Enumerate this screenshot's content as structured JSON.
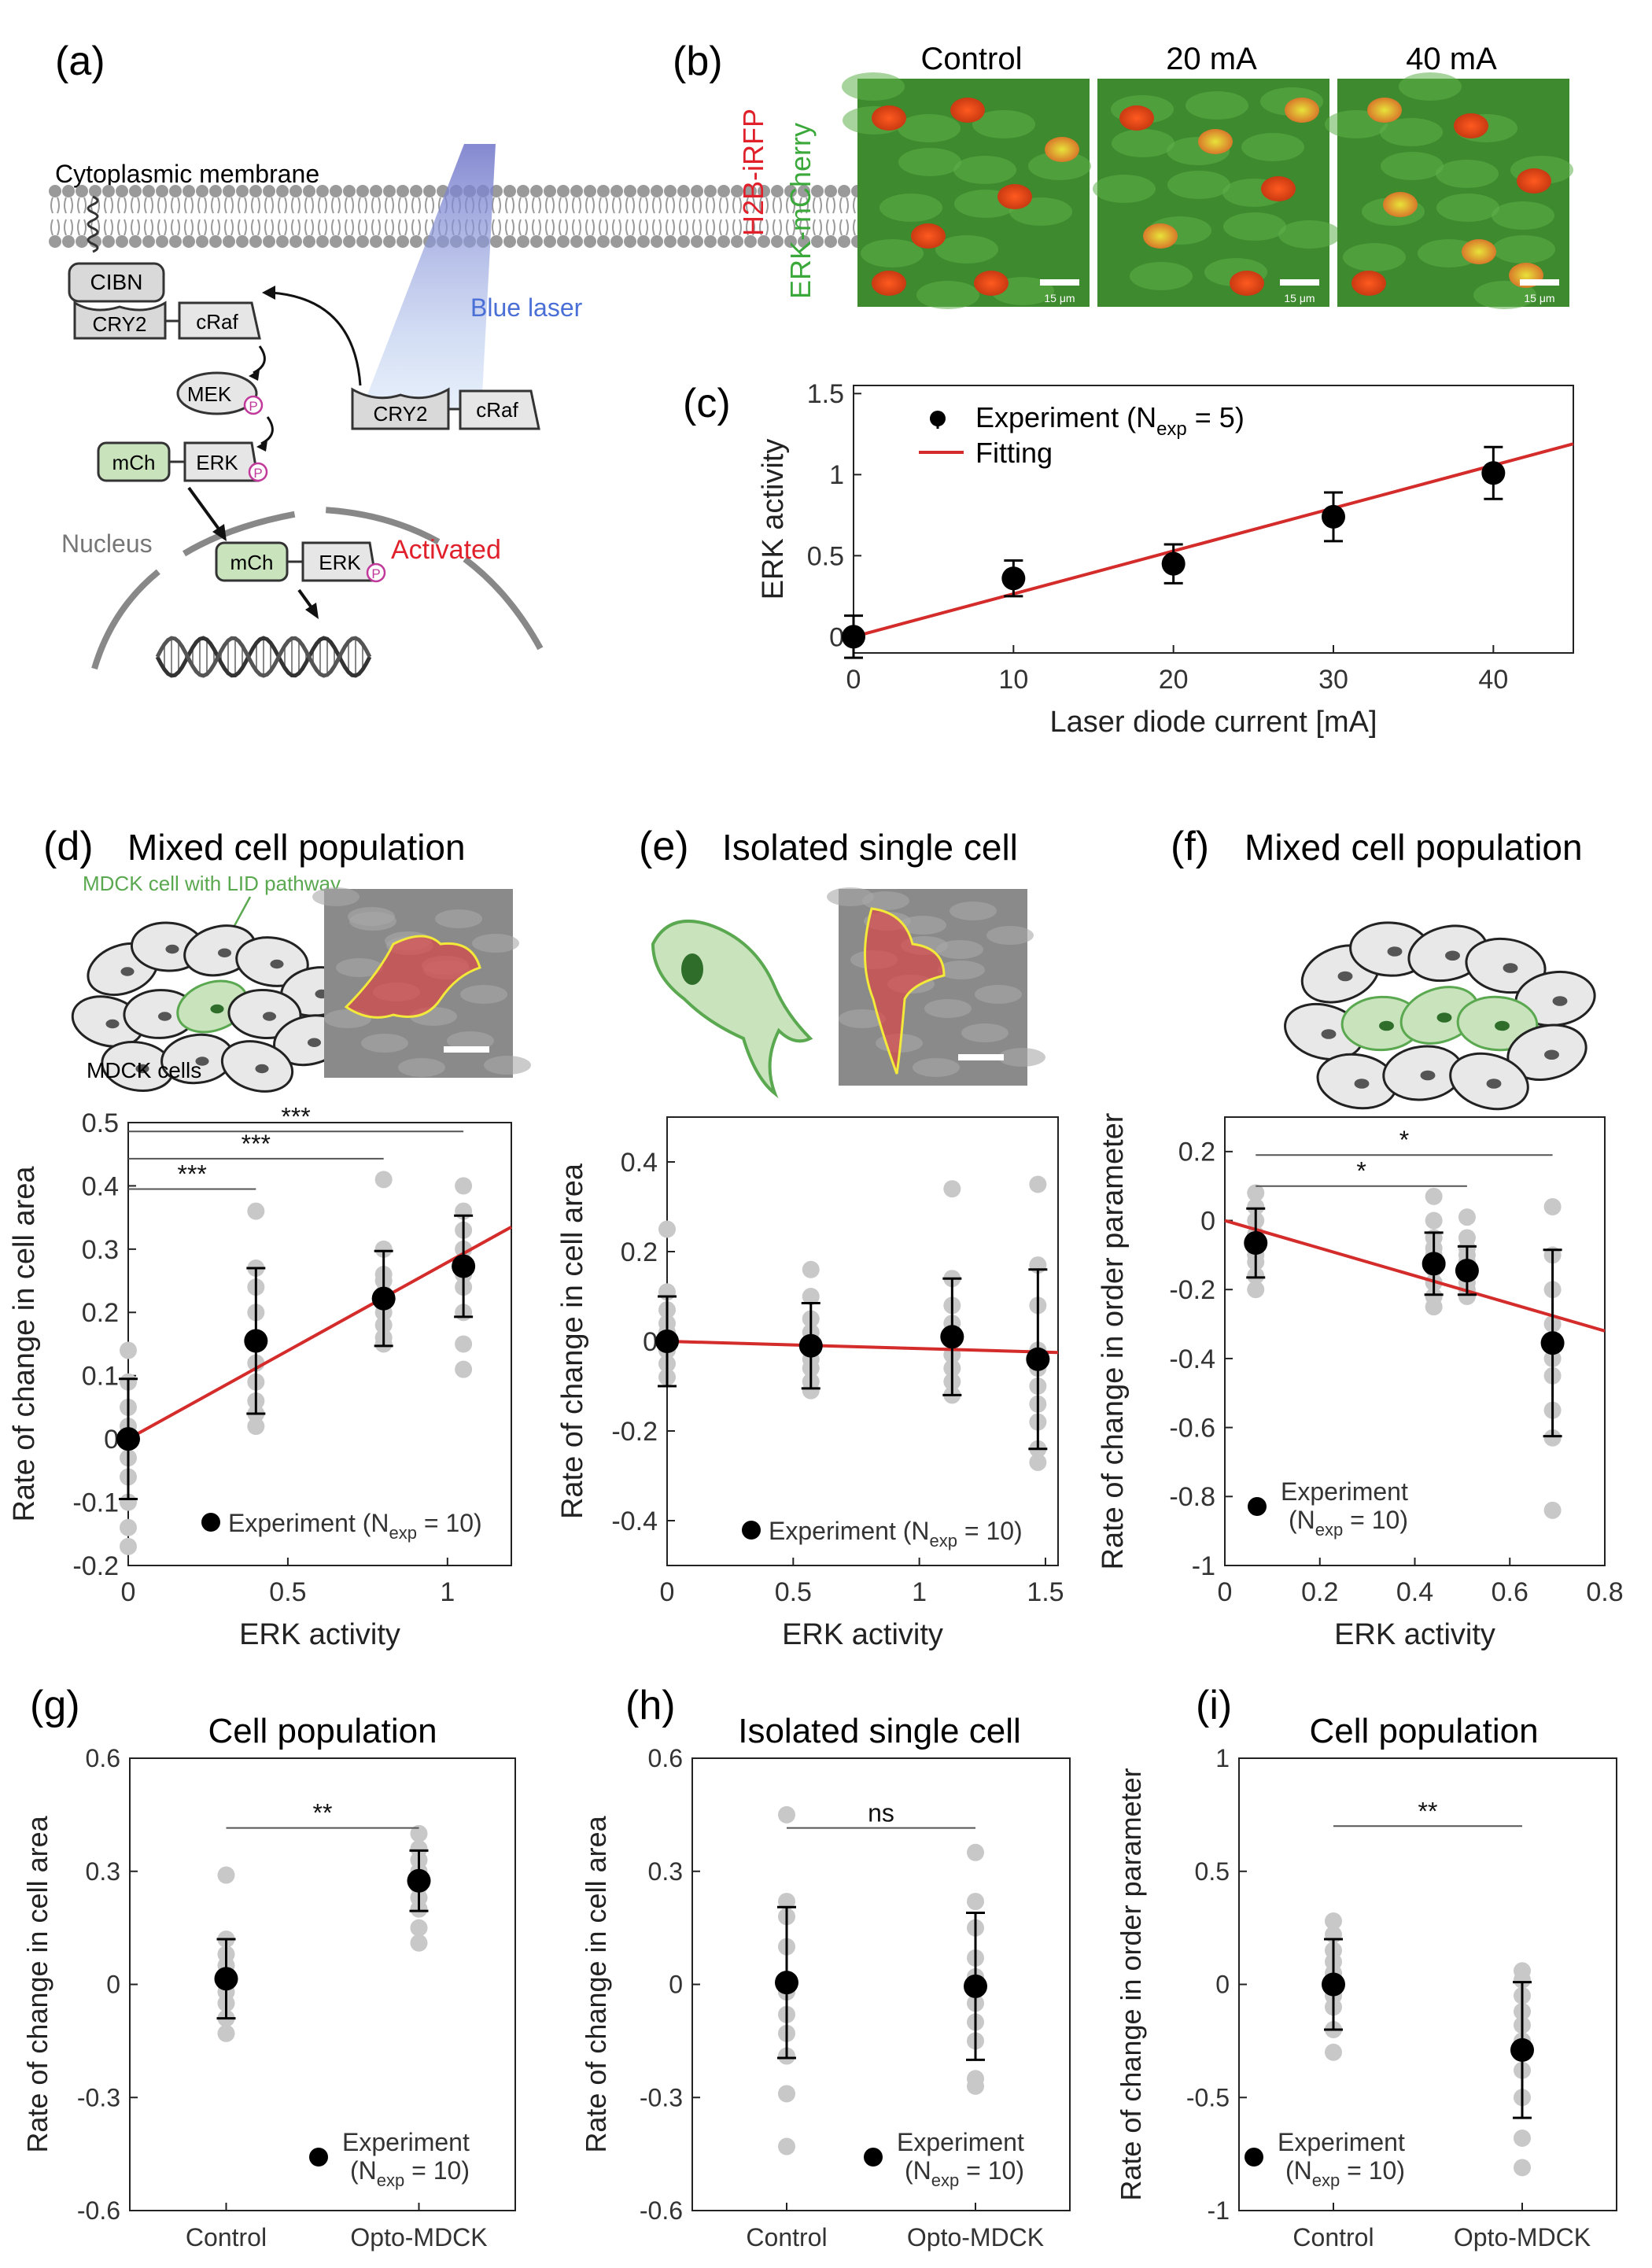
{
  "panels": {
    "a": {
      "label": "(a)",
      "membrane": "Cytoplasmic membrane",
      "laser": "Blue laser",
      "nucleus": "Nucleus",
      "activated": "Activated",
      "boxes": {
        "cibn": "CIBN",
        "cry2": "CRY2",
        "craf": "cRaf",
        "mek": "MEK",
        "mch": "mCh",
        "erk": "ERK",
        "p": "P"
      }
    },
    "b": {
      "label": "(b)",
      "columns": [
        "Control",
        "20 mA",
        "40 mA"
      ],
      "side_red": "H2B-iRFP",
      "side_green": "ERK-mCherry",
      "scalebar": "15 μm"
    },
    "c": {
      "label": "(c)",
      "legend_exp": "Experiment (N",
      "legend_sub": "exp",
      "legend_end": " = 5)",
      "legend_fit": "Fitting"
    },
    "d": {
      "label": "(d)",
      "title": "Mixed cell population",
      "lid_label": "MDCK cell with LID pathway",
      "cells_label": "MDCK cells"
    },
    "e": {
      "label": "(e)",
      "title": "Isolated single cell"
    },
    "f": {
      "label": "(f)",
      "title": "Mixed cell population"
    },
    "g": {
      "label": "(g)",
      "title": "Cell population"
    },
    "h": {
      "label": "(h)",
      "title": "Isolated single cell"
    },
    "i": {
      "label": "(i)",
      "title": "Cell population"
    }
  },
  "colors": {
    "fit": "#d42b2b",
    "point": "#000000",
    "gray_point": "#c8c8c8",
    "green": "#5aa84f",
    "blue": "#4a6fd6",
    "red": "#e0202a"
  },
  "chart_data": [
    {
      "id": "c",
      "type": "scatter",
      "xlabel": "Laser diode current [mA]",
      "ylabel": "ERK activity",
      "xlim": [
        0,
        45
      ],
      "ylim": [
        -0.1,
        1.55
      ],
      "xticks": [
        0,
        10,
        20,
        30,
        40
      ],
      "yticks": [
        0,
        0.5,
        1,
        1.5
      ],
      "yticklabels": [
        "0",
        "0.5",
        "1",
        "1.5"
      ],
      "series": [
        {
          "name": "Experiment",
          "x": [
            0,
            10,
            20,
            30,
            40
          ],
          "y": [
            0.0,
            0.36,
            0.45,
            0.74,
            1.01
          ],
          "err": [
            0.13,
            0.11,
            0.12,
            0.15,
            0.16
          ]
        }
      ],
      "fit": {
        "x": [
          0,
          45
        ],
        "y": [
          0.0,
          1.19
        ]
      }
    },
    {
      "id": "d",
      "type": "scatter",
      "xlabel": "ERK activity",
      "ylabel": "Rate of change in cell area",
      "xlim": [
        0,
        1.2
      ],
      "ylim": [
        -0.2,
        0.5
      ],
      "xticks": [
        0,
        0.5,
        1
      ],
      "xticklabels": [
        "0",
        "0.5",
        "1"
      ],
      "yticks": [
        -0.2,
        -0.1,
        0,
        0.1,
        0.2,
        0.3,
        0.4,
        0.5
      ],
      "yticklabels": [
        "-0.2",
        "-0.1",
        "0",
        "0.1",
        "0.2",
        "0.3",
        "0.4",
        "0.5"
      ],
      "legend": {
        "text": "Experiment (N",
        "sub": "exp",
        "end": " = 10)"
      },
      "series": [
        {
          "name": "Experiment",
          "x": [
            0,
            0.4,
            0.8,
            1.05
          ],
          "y": [
            0.0,
            0.155,
            0.222,
            0.273
          ],
          "err": [
            0.095,
            0.115,
            0.075,
            0.08
          ]
        }
      ],
      "raw": [
        [
          0,
          [
            0.14,
            0.09,
            0.05,
            0.02,
            -0.03,
            -0.06,
            -0.1,
            -0.14,
            -0.17,
            0.0
          ]
        ],
        [
          0.4,
          [
            0.36,
            0.27,
            0.24,
            0.2,
            0.15,
            0.12,
            0.09,
            0.06,
            0.04,
            0.02
          ]
        ],
        [
          0.8,
          [
            0.41,
            0.3,
            0.26,
            0.25,
            0.23,
            0.22,
            0.2,
            0.18,
            0.16,
            0.15
          ]
        ],
        [
          1.05,
          [
            0.4,
            0.36,
            0.33,
            0.3,
            0.28,
            0.26,
            0.24,
            0.2,
            0.15,
            0.11
          ]
        ]
      ],
      "fit": {
        "x": [
          0,
          1.2
        ],
        "y": [
          0.0,
          0.335
        ]
      },
      "sig": [
        {
          "x1": 0,
          "x2": 0.4,
          "y": 0.395,
          "label": "***"
        },
        {
          "x1": 0,
          "x2": 0.8,
          "y": 0.443,
          "label": "***"
        },
        {
          "x1": 0,
          "x2": 1.05,
          "y": 0.486,
          "label": "***"
        }
      ]
    },
    {
      "id": "e",
      "type": "scatter",
      "xlabel": "ERK activity",
      "ylabel": "Rate of change in cell area",
      "xlim": [
        0,
        1.55
      ],
      "ylim": [
        -0.5,
        0.5
      ],
      "xticks": [
        0,
        0.5,
        1,
        1.5
      ],
      "xticklabels": [
        "0",
        "0.5",
        "1",
        "1.5"
      ],
      "yticks": [
        -0.4,
        -0.2,
        0,
        0.2,
        0.4
      ],
      "yticklabels": [
        "-0.4",
        "-0.2",
        "0",
        "0.2",
        "0.4"
      ],
      "legend": {
        "text": "Experiment (N",
        "sub": "exp",
        "end": " = 10)"
      },
      "series": [
        {
          "name": "Experiment",
          "x": [
            0,
            0.57,
            1.13,
            1.47
          ],
          "y": [
            0.0,
            -0.01,
            0.01,
            -0.04
          ],
          "err": [
            0.1,
            0.095,
            0.13,
            0.2
          ]
        }
      ],
      "raw": [
        [
          0,
          [
            0.25,
            0.11,
            0.07,
            0.04,
            0.02,
            -0.02,
            -0.05,
            -0.08,
            0.0,
            0.01
          ]
        ],
        [
          0.57,
          [
            0.16,
            0.1,
            0.05,
            0.02,
            -0.02,
            -0.04,
            -0.06,
            -0.09,
            -0.11,
            0.0
          ]
        ],
        [
          1.13,
          [
            0.34,
            0.14,
            0.08,
            0.04,
            0.0,
            -0.03,
            -0.06,
            -0.09,
            -0.12,
            0.02
          ]
        ],
        [
          1.47,
          [
            0.35,
            0.17,
            0.08,
            -0.02,
            -0.06,
            -0.1,
            -0.14,
            -0.18,
            -0.24,
            -0.27
          ]
        ]
      ],
      "fit": {
        "x": [
          0,
          1.55
        ],
        "y": [
          0.0,
          -0.025
        ]
      }
    },
    {
      "id": "f",
      "type": "scatter",
      "xlabel": "ERK activity",
      "ylabel": "Rate of change in order parameter",
      "xlim": [
        0,
        0.8
      ],
      "ylim": [
        -1,
        0.3
      ],
      "xticks": [
        0,
        0.2,
        0.4,
        0.6,
        0.8
      ],
      "xticklabels": [
        "0",
        "0.2",
        "0.4",
        "0.6",
        "0.8"
      ],
      "yticks": [
        -1,
        -0.8,
        -0.6,
        -0.4,
        -0.2,
        0,
        0.2
      ],
      "yticklabels": [
        "-1",
        "-0.8",
        "-0.6",
        "-0.4",
        "-0.2",
        "0",
        "0.2"
      ],
      "legend": {
        "text": "Experiment",
        "text2": "(N",
        "sub": "exp",
        "end": " = 10)"
      },
      "series": [
        {
          "name": "Experiment",
          "x": [
            0.065,
            0.44,
            0.51,
            0.69
          ],
          "y": [
            -0.065,
            -0.125,
            -0.145,
            -0.355
          ],
          "err": [
            0.1,
            0.09,
            0.07,
            0.27
          ]
        }
      ],
      "raw": [
        [
          0.065,
          [
            0.08,
            0.04,
            0.0,
            -0.04,
            -0.08,
            -0.12,
            -0.16,
            -0.2,
            -0.06,
            -0.1
          ]
        ],
        [
          0.44,
          [
            0.07,
            0.0,
            -0.05,
            -0.1,
            -0.14,
            -0.18,
            -0.22,
            -0.25,
            -0.12,
            -0.08
          ]
        ],
        [
          0.51,
          [
            0.01,
            -0.05,
            -0.1,
            -0.14,
            -0.18,
            -0.22,
            -0.12,
            -0.16,
            -0.08,
            -0.2
          ]
        ],
        [
          0.69,
          [
            0.04,
            -0.1,
            -0.2,
            -0.3,
            -0.35,
            -0.4,
            -0.45,
            -0.55,
            -0.63,
            -0.84
          ]
        ]
      ],
      "fit": {
        "x": [
          0,
          0.8
        ],
        "y": [
          0.0,
          -0.32
        ]
      },
      "sig": [
        {
          "x1": 0.065,
          "x2": 0.51,
          "y": 0.1,
          "label": "*"
        },
        {
          "x1": 0.065,
          "x2": 0.69,
          "y": 0.19,
          "label": "*"
        }
      ]
    },
    {
      "id": "g",
      "type": "scatter",
      "ylabel": "Rate of change in cell area",
      "categories": [
        "Control",
        "Opto-MDCK"
      ],
      "xlim": [
        0.5,
        2.5
      ],
      "ylim": [
        -0.6,
        0.6
      ],
      "yticks": [
        -0.6,
        -0.3,
        0,
        0.3,
        0.6
      ],
      "yticklabels": [
        "-0.6",
        "-0.3",
        "0",
        "0.3",
        "0.6"
      ],
      "legend": {
        "text": "Experiment",
        "text2": "(N",
        "sub": "exp",
        "end": " = 10)"
      },
      "series": [
        {
          "name": "Experiment",
          "x": [
            1,
            2
          ],
          "y": [
            0.015,
            0.275
          ],
          "err": [
            0.105,
            0.08
          ]
        }
      ],
      "raw": [
        [
          1,
          [
            0.29,
            0.12,
            0.08,
            0.05,
            0.02,
            -0.02,
            -0.05,
            -0.09,
            -0.13,
            0.0
          ]
        ],
        [
          2,
          [
            0.4,
            0.36,
            0.33,
            0.3,
            0.28,
            0.26,
            0.23,
            0.2,
            0.15,
            0.11
          ]
        ]
      ],
      "sig": [
        {
          "x1": 1,
          "x2": 2,
          "y": 0.415,
          "label": "**"
        }
      ]
    },
    {
      "id": "h",
      "type": "scatter",
      "ylabel": "Rate of change in cell area",
      "categories": [
        "Control",
        "Opto-MDCK"
      ],
      "xlim": [
        0.5,
        2.5
      ],
      "ylim": [
        -0.6,
        0.6
      ],
      "yticks": [
        -0.6,
        -0.3,
        0,
        0.3,
        0.6
      ],
      "yticklabels": [
        "-0.6",
        "-0.3",
        "0",
        "0.3",
        "0.6"
      ],
      "legend": {
        "text": "Experiment",
        "text2": "(N",
        "sub": "exp",
        "end": " = 10)"
      },
      "series": [
        {
          "name": "Experiment",
          "x": [
            1,
            2
          ],
          "y": [
            0.005,
            -0.005
          ],
          "err": [
            0.2,
            0.195
          ]
        }
      ],
      "raw": [
        [
          1,
          [
            0.45,
            0.22,
            0.18,
            0.1,
            -0.02,
            -0.08,
            -0.13,
            -0.19,
            -0.29,
            -0.43
          ]
        ],
        [
          2,
          [
            0.35,
            0.22,
            0.15,
            0.07,
            0.02,
            -0.05,
            -0.1,
            -0.15,
            -0.25,
            -0.27
          ]
        ]
      ],
      "sig": [
        {
          "x1": 1,
          "x2": 2,
          "y": 0.415,
          "label": "ns"
        }
      ]
    },
    {
      "id": "i",
      "type": "scatter",
      "ylabel": "Rate of change in order parameter",
      "categories": [
        "Control",
        "Opto-MDCK"
      ],
      "xlim": [
        0.5,
        2.5
      ],
      "ylim": [
        -1,
        1
      ],
      "yticks": [
        -1,
        -0.5,
        0,
        0.5,
        1
      ],
      "yticklabels": [
        "-1",
        "-0.5",
        "0",
        "0.5",
        "1"
      ],
      "legend": {
        "text": "Experiment",
        "text2": "(N",
        "sub": "exp",
        "end": " = 10)"
      },
      "series": [
        {
          "name": "Experiment",
          "x": [
            1,
            2
          ],
          "y": [
            0.0,
            -0.29
          ],
          "err": [
            0.2,
            0.3
          ]
        }
      ],
      "raw": [
        [
          1,
          [
            0.28,
            0.22,
            0.15,
            0.1,
            0.05,
            0.0,
            -0.05,
            -0.1,
            -0.2,
            -0.3
          ]
        ],
        [
          2,
          [
            0.06,
            0.02,
            -0.05,
            -0.12,
            -0.18,
            -0.25,
            -0.38,
            -0.5,
            -0.68,
            -0.81
          ]
        ]
      ],
      "sig": [
        {
          "x1": 1,
          "x2": 2,
          "y": 0.7,
          "label": "**"
        }
      ]
    }
  ]
}
